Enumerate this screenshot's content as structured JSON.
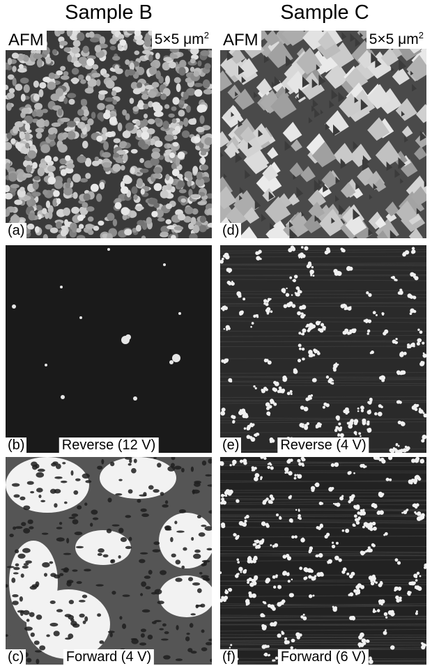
{
  "columns": [
    {
      "title": "Sample B"
    },
    {
      "title": "Sample C"
    }
  ],
  "panels": {
    "a": {
      "tag": "(a)",
      "topleft": "AFM",
      "scale": "5×5 μm",
      "scale_sup": "2"
    },
    "b": {
      "tag": "(b)",
      "caption": "Reverse (12 V)"
    },
    "c": {
      "tag": "(c)",
      "caption": "Forward (4 V)"
    },
    "d": {
      "tag": "(d)",
      "topleft": "AFM",
      "scale": "5×5 μm",
      "scale_sup": "2"
    },
    "e": {
      "tag": "(e)",
      "caption": "Reverse (4 V)"
    },
    "f": {
      "tag": "(f)",
      "caption": "Forward (6 V)"
    }
  },
  "colors": {
    "background": "#ffffff",
    "image_dark": "#1c1c1c",
    "grain_light": "#dcdcdc"
  }
}
